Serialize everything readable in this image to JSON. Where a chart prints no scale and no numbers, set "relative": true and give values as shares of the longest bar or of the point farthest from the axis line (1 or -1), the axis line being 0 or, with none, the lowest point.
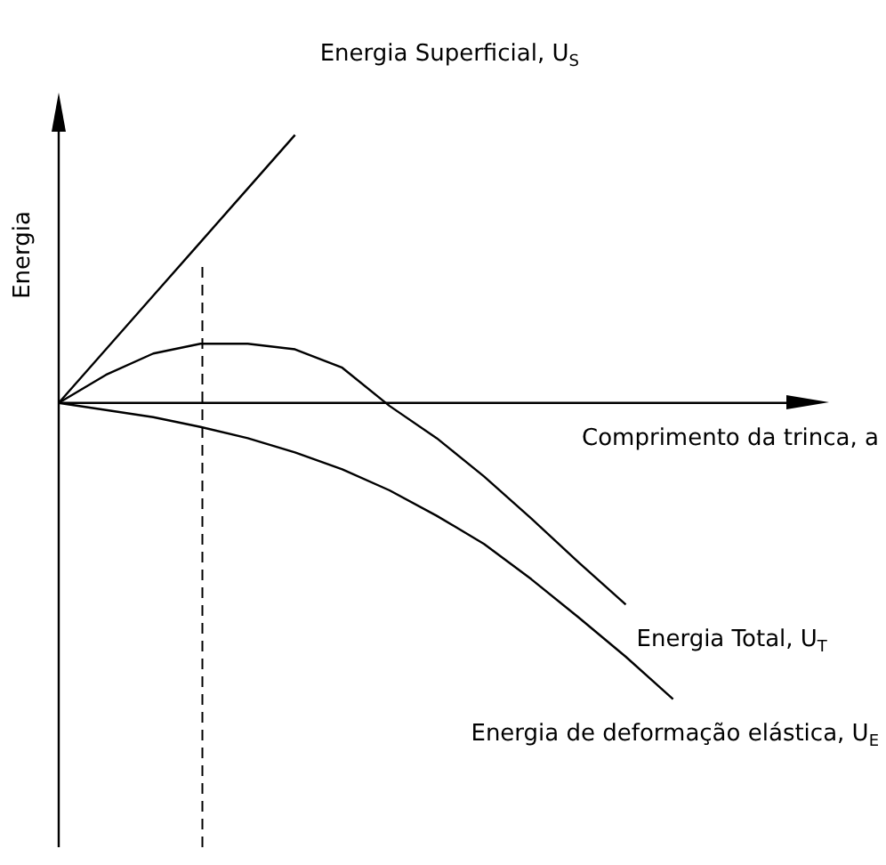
{
  "chart_data": {
    "type": "line",
    "relative": true,
    "xlabel": "Comprimento da trinca, a",
    "ylabel": "Energia",
    "tick_labels": false,
    "grid": false,
    "legend": false,
    "marker": "none",
    "line_style": "solid",
    "categories": [
      null,
      null,
      null,
      null,
      null,
      null,
      null,
      null,
      null,
      null,
      null,
      null,
      null,
      null,
      null,
      null,
      null
    ],
    "series": [
      {
        "name": "Energia Superficial, U$_{S}$",
        "color": "#000000",
        "values": [
          0,
          0.181,
          0.362,
          0.543,
          0.724,
          0.905,
          null,
          null,
          null,
          null,
          null,
          null,
          null,
          null,
          null,
          null,
          null
        ]
      },
      {
        "name": "Energia Total, U$_{T}$",
        "color": "#000000",
        "values": [
          0,
          0.095,
          0.167,
          0.2,
          0.2,
          0.181,
          0.119,
          -0.01,
          -0.119,
          -0.248,
          -0.39,
          -0.538,
          -0.681,
          null,
          null,
          null,
          null
        ]
      },
      {
        "name": "Energia de deformação elástica, U$_{E}$",
        "color": "#000000",
        "values": [
          0,
          -0.024,
          -0.048,
          -0.081,
          -0.119,
          -0.167,
          -0.224,
          -0.295,
          -0.381,
          -0.476,
          -0.595,
          -0.724,
          -0.857,
          -1,
          null,
          null,
          null
        ]
      }
    ]
  }
}
